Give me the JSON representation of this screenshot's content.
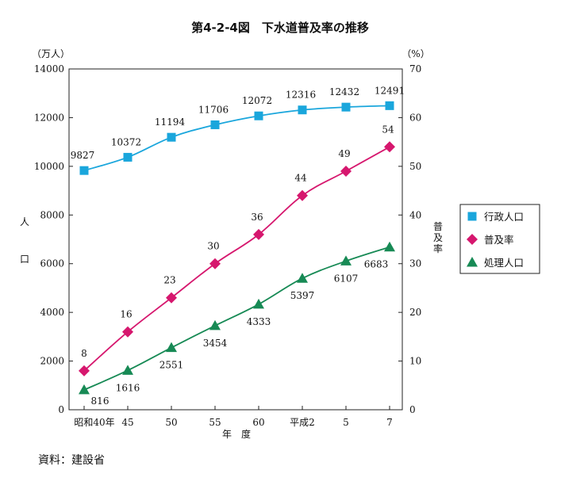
{
  "chart_data": {
    "type": "line",
    "title": "第4-2-4図　下水道普及率の推移",
    "y_left_unit": "（万人）",
    "y_right_unit": "（%）",
    "y_left_label": [
      "人",
      "口"
    ],
    "y_right_label": [
      "普",
      "及",
      "率"
    ],
    "xlabel": "年　度",
    "categories": [
      "昭和40年",
      "45",
      "50",
      "55",
      "60",
      "平成2",
      "5",
      "7"
    ],
    "y_left_ticks": [
      "0",
      "2000",
      "4000",
      "6000",
      "8000",
      "10000",
      "12000",
      "14000"
    ],
    "y_right_ticks": [
      "0",
      "10",
      "20",
      "30",
      "40",
      "50",
      "60",
      "70"
    ],
    "ylim_left": [
      0,
      14000
    ],
    "ylim_right": [
      0,
      70
    ],
    "grid": false,
    "legend_position": "right",
    "series": [
      {
        "name": "行政人口",
        "axis": "left",
        "marker": "square",
        "color": "#1aa6dc",
        "values": [
          9827,
          10372,
          11194,
          11706,
          12072,
          12316,
          12432,
          12491
        ],
        "labels": [
          "9827",
          "10372",
          "11194",
          "11706",
          "12072",
          "12316",
          "12432",
          "12491"
        ]
      },
      {
        "name": "普及率",
        "axis": "right",
        "marker": "diamond",
        "color": "#d6176e",
        "values": [
          8,
          16,
          23,
          30,
          36,
          44,
          49,
          54
        ],
        "labels": [
          "8",
          "16",
          "23",
          "30",
          "36",
          "44",
          "49",
          "54"
        ]
      },
      {
        "name": "処理人口",
        "axis": "left",
        "marker": "triangle",
        "color": "#178a55",
        "values": [
          816,
          1616,
          2551,
          3454,
          4333,
          5397,
          6107,
          6683
        ],
        "labels": [
          "816",
          "1616",
          "2551",
          "3454",
          "4333",
          "5397",
          "6107",
          "6683"
        ]
      }
    ],
    "source": "資料：建設省"
  }
}
